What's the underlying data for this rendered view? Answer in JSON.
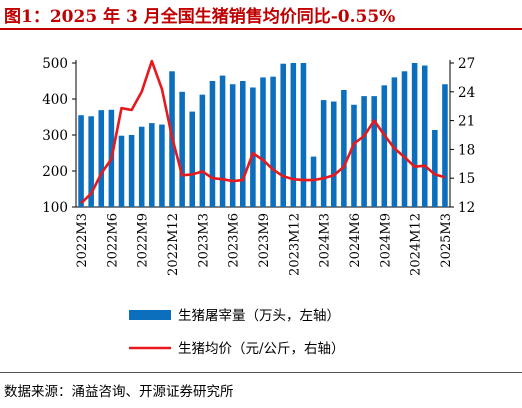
{
  "header": {
    "title": "图1：2025 年 3 月全国生猪销售均价同比-0.55%"
  },
  "footer": {
    "source": "数据来源：涌益咨询、开源证券研究所"
  },
  "colors": {
    "title": "#c00000",
    "bar": "#0b6fbd",
    "line": "#e8191c"
  },
  "chart_data": {
    "type": "bar",
    "x": [
      "2022M3",
      "2022M4",
      "2022M5",
      "2022M6",
      "2022M7",
      "2022M8",
      "2022M9",
      "2022M10",
      "2022M11",
      "2022M12",
      "2023M1",
      "2023M2",
      "2023M3",
      "2023M4",
      "2023M5",
      "2023M6",
      "2023M7",
      "2023M8",
      "2023M9",
      "2023M10",
      "2023M11",
      "2023M12",
      "2024M1",
      "2024M2",
      "2024M3",
      "2024M4",
      "2024M5",
      "2024M6",
      "2024M7",
      "2024M8",
      "2024M9",
      "2024M10",
      "2024M11",
      "2024M12",
      "2025M1",
      "2025M2",
      "2025M3"
    ],
    "x_tick_labels": [
      "2022M3",
      "2022M6",
      "2022M9",
      "2022M12",
      "2023M3",
      "2023M6",
      "2023M9",
      "2023M12",
      "2024M3",
      "2024M6",
      "2024M9",
      "2024M12",
      "2025M3"
    ],
    "series": [
      {
        "name": "生猪屠宰量（万头，左轴）",
        "type": "bar",
        "axis": "left",
        "values": [
          355,
          352,
          369,
          370,
          298,
          300,
          323,
          333,
          329,
          477,
          420,
          365,
          412,
          450,
          465,
          441,
          450,
          432,
          460,
          462,
          498,
          500,
          500,
          240,
          397,
          393,
          425,
          384,
          408,
          408,
          438,
          460,
          477,
          500,
          493,
          314,
          441
        ]
      },
      {
        "name": "生猪均价（元/公斤，右轴）",
        "type": "line",
        "axis": "right",
        "values": [
          12.4,
          13.4,
          15.5,
          17.0,
          22.3,
          22.1,
          24.0,
          27.2,
          24.3,
          19.3,
          15.3,
          15.4,
          15.7,
          15.0,
          14.9,
          14.7,
          14.8,
          17.6,
          16.9,
          15.9,
          15.2,
          14.9,
          14.8,
          14.8,
          15.0,
          15.3,
          16.2,
          18.6,
          19.4,
          21.0,
          19.5,
          18.1,
          17.2,
          16.2,
          16.3,
          15.4,
          15.1
        ]
      }
    ],
    "y_left": {
      "lim": [
        100,
        500
      ],
      "ticks": [
        100,
        200,
        300,
        400,
        500
      ]
    },
    "y_right": {
      "lim": [
        12,
        27
      ],
      "ticks": [
        12,
        15,
        18,
        21,
        24,
        27
      ]
    },
    "legend_position": "bottom",
    "grid": false
  }
}
